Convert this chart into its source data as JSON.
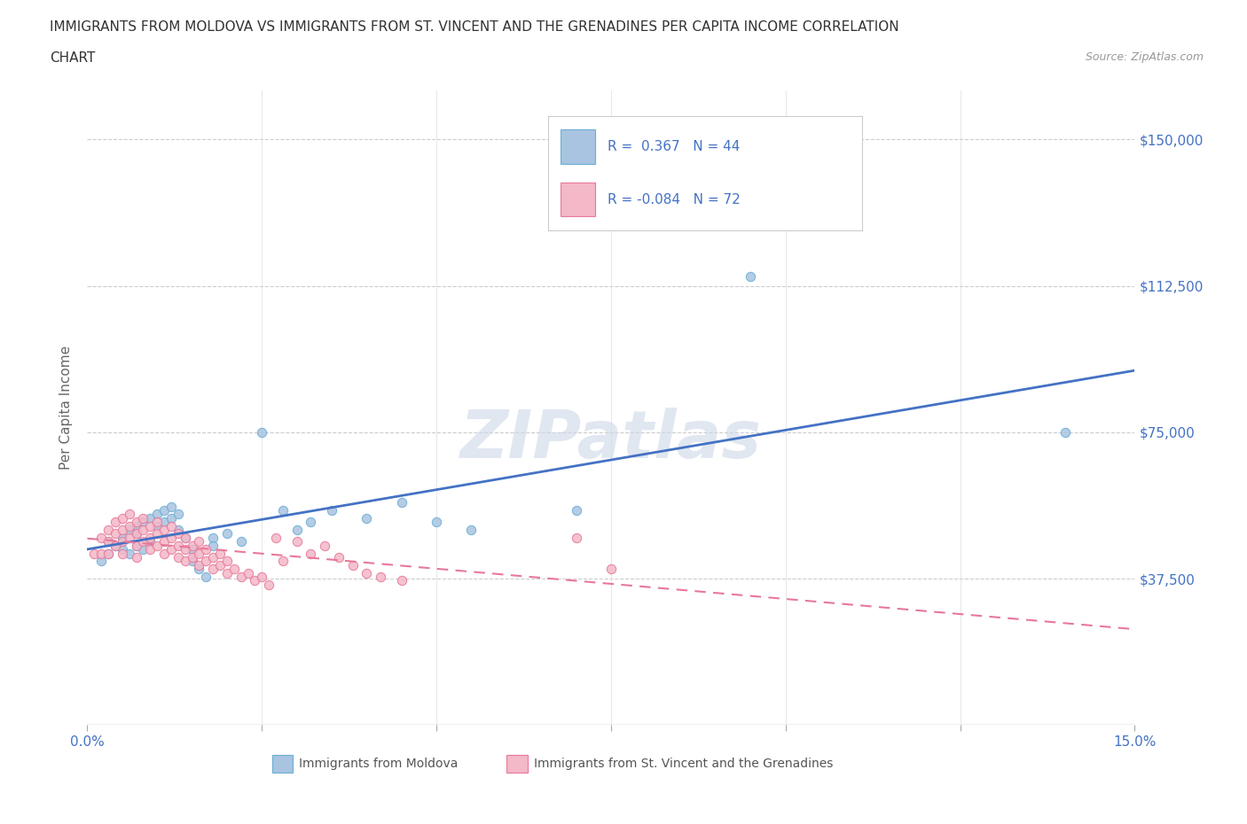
{
  "title_line1": "IMMIGRANTS FROM MOLDOVA VS IMMIGRANTS FROM ST. VINCENT AND THE GRENADINES PER CAPITA INCOME CORRELATION",
  "title_line2": "CHART",
  "source_text": "Source: ZipAtlas.com",
  "ylabel": "Per Capita Income",
  "xlim": [
    0.0,
    0.15
  ],
  "ylim": [
    0,
    162500
  ],
  "xticks": [
    0.0,
    0.025,
    0.05,
    0.075,
    0.1,
    0.125,
    0.15
  ],
  "ytick_positions": [
    0,
    37500,
    75000,
    112500,
    150000
  ],
  "ytick_labels": [
    "",
    "$37,500",
    "$75,000",
    "$112,500",
    "$150,000"
  ],
  "moldova_color": "#a8c4e0",
  "moldova_edge_color": "#6aaed6",
  "stvincent_color": "#f4b8c8",
  "stvincent_edge_color": "#e87898",
  "trend_moldova_color": "#4472c4",
  "trend_stvincent_color": "#e87898",
  "r_moldova": 0.367,
  "n_moldova": 44,
  "r_stvincent": -0.084,
  "n_stvincent": 72,
  "moldova_x": [
    0.002,
    0.003,
    0.003,
    0.004,
    0.005,
    0.005,
    0.006,
    0.006,
    0.007,
    0.007,
    0.007,
    0.008,
    0.008,
    0.009,
    0.009,
    0.01,
    0.01,
    0.011,
    0.011,
    0.012,
    0.012,
    0.013,
    0.013,
    0.014,
    0.015,
    0.015,
    0.016,
    0.017,
    0.018,
    0.018,
    0.02,
    0.022,
    0.025,
    0.028,
    0.03,
    0.032,
    0.035,
    0.04,
    0.045,
    0.05,
    0.055,
    0.07,
    0.095,
    0.14
  ],
  "moldova_y": [
    42000,
    47000,
    44000,
    46000,
    48000,
    45000,
    50000,
    44000,
    51000,
    49000,
    46000,
    52000,
    45000,
    53000,
    47000,
    54000,
    51000,
    55000,
    52000,
    56000,
    53000,
    54000,
    50000,
    48000,
    45000,
    42000,
    40000,
    38000,
    48000,
    46000,
    49000,
    47000,
    75000,
    55000,
    50000,
    52000,
    55000,
    53000,
    57000,
    52000,
    50000,
    55000,
    115000,
    75000
  ],
  "stvincent_x": [
    0.001,
    0.002,
    0.002,
    0.003,
    0.003,
    0.003,
    0.004,
    0.004,
    0.004,
    0.005,
    0.005,
    0.005,
    0.005,
    0.006,
    0.006,
    0.006,
    0.007,
    0.007,
    0.007,
    0.007,
    0.008,
    0.008,
    0.008,
    0.009,
    0.009,
    0.009,
    0.01,
    0.01,
    0.01,
    0.011,
    0.011,
    0.011,
    0.012,
    0.012,
    0.012,
    0.013,
    0.013,
    0.013,
    0.014,
    0.014,
    0.014,
    0.015,
    0.015,
    0.016,
    0.016,
    0.016,
    0.017,
    0.017,
    0.018,
    0.018,
    0.019,
    0.019,
    0.02,
    0.02,
    0.021,
    0.022,
    0.023,
    0.024,
    0.025,
    0.026,
    0.027,
    0.028,
    0.03,
    0.032,
    0.034,
    0.036,
    0.038,
    0.04,
    0.042,
    0.045,
    0.07,
    0.075
  ],
  "stvincent_y": [
    44000,
    48000,
    44000,
    50000,
    47000,
    44000,
    52000,
    49000,
    46000,
    53000,
    50000,
    47000,
    44000,
    54000,
    51000,
    48000,
    52000,
    49000,
    46000,
    43000,
    53000,
    50000,
    47000,
    51000,
    48000,
    45000,
    52000,
    49000,
    46000,
    50000,
    47000,
    44000,
    51000,
    48000,
    45000,
    49000,
    46000,
    43000,
    48000,
    45000,
    42000,
    46000,
    43000,
    47000,
    44000,
    41000,
    45000,
    42000,
    43000,
    40000,
    44000,
    41000,
    42000,
    39000,
    40000,
    38000,
    39000,
    37000,
    38000,
    36000,
    48000,
    42000,
    47000,
    44000,
    46000,
    43000,
    41000,
    39000,
    38000,
    37000,
    48000,
    40000
  ]
}
